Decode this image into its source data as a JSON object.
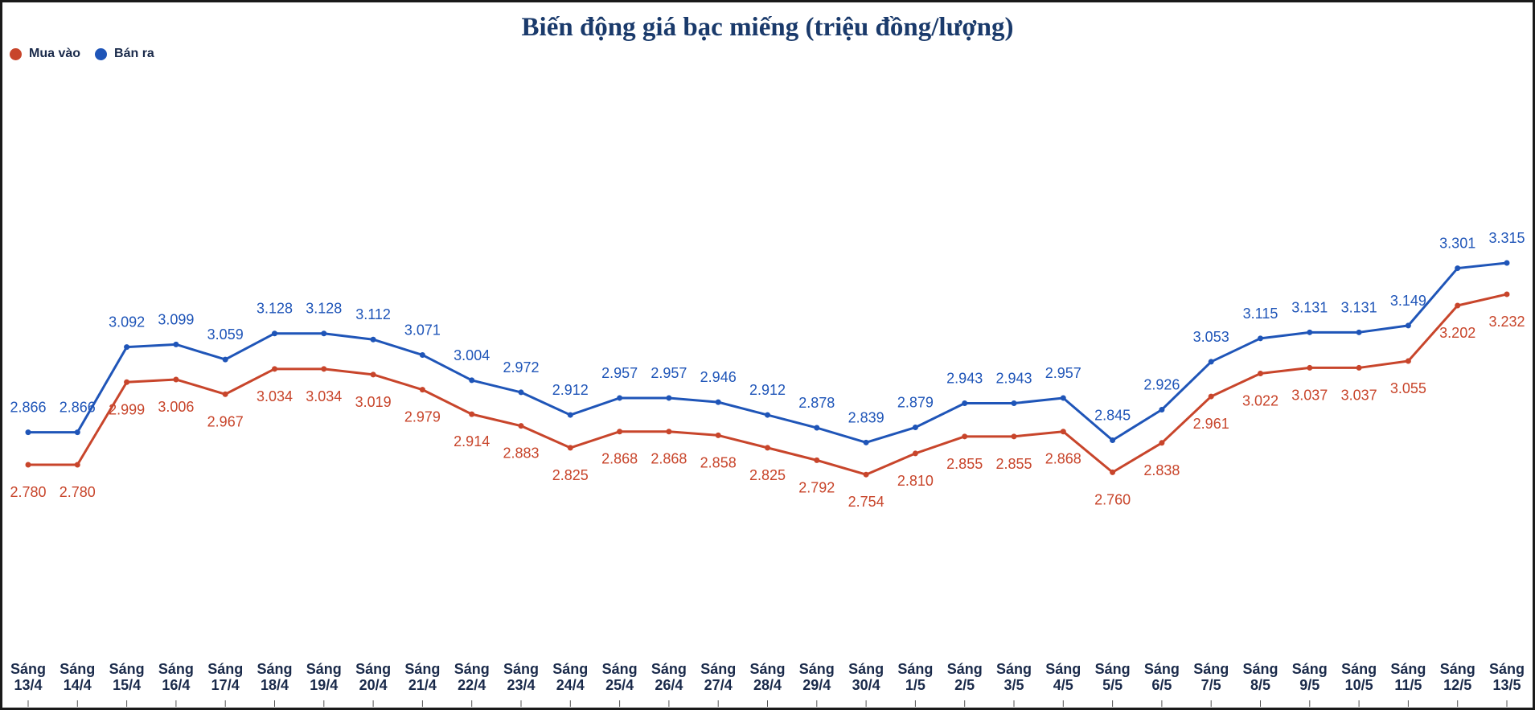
{
  "chart_data": {
    "type": "line",
    "title": "Biến động giá bạc miếng (triệu đồng/lượng)",
    "categories": [
      [
        "Sáng",
        "13/4"
      ],
      [
        "Sáng",
        "14/4"
      ],
      [
        "Sáng",
        "15/4"
      ],
      [
        "Sáng",
        "16/4"
      ],
      [
        "Sáng",
        "17/4"
      ],
      [
        "Sáng",
        "18/4"
      ],
      [
        "Sáng",
        "19/4"
      ],
      [
        "Sáng",
        "20/4"
      ],
      [
        "Sáng",
        "21/4"
      ],
      [
        "Sáng",
        "22/4"
      ],
      [
        "Sáng",
        "23/4"
      ],
      [
        "Sáng",
        "24/4"
      ],
      [
        "Sáng",
        "25/4"
      ],
      [
        "Sáng",
        "26/4"
      ],
      [
        "Sáng",
        "27/4"
      ],
      [
        "Sáng",
        "28/4"
      ],
      [
        "Sáng",
        "29/4"
      ],
      [
        "Sáng",
        "30/4"
      ],
      [
        "Sáng",
        "1/5"
      ],
      [
        "Sáng",
        "2/5"
      ],
      [
        "Sáng",
        "3/5"
      ],
      [
        "Sáng",
        "4/5"
      ],
      [
        "Sáng",
        "5/5"
      ],
      [
        "Sáng",
        "6/5"
      ],
      [
        "Sáng",
        "7/5"
      ],
      [
        "Sáng",
        "8/5"
      ],
      [
        "Sáng",
        "9/5"
      ],
      [
        "Sáng",
        "10/5"
      ],
      [
        "Sáng",
        "11/5"
      ],
      [
        "Sáng",
        "12/5"
      ],
      [
        "Sáng",
        "13/5"
      ]
    ],
    "series": [
      {
        "name": "Mua vào",
        "color": "#c8452b",
        "values": [
          2.78,
          2.78,
          2.999,
          3.006,
          2.967,
          3.034,
          3.034,
          3.019,
          2.979,
          2.914,
          2.883,
          2.825,
          2.868,
          2.868,
          2.858,
          2.825,
          2.792,
          2.754,
          2.81,
          2.855,
          2.855,
          2.868,
          2.76,
          2.838,
          2.961,
          3.022,
          3.037,
          3.037,
          3.055,
          3.202,
          3.232
        ],
        "labels": [
          "2.780",
          "2.780",
          "2.999",
          "3.006",
          "2.967",
          "3.034",
          "3.034",
          "3.019",
          "2.979",
          "2.914",
          "2.883",
          "2.825",
          "2.868",
          "2.868",
          "2.858",
          "2.825",
          "2.792",
          "2.754",
          "2.810",
          "2.855",
          "2.855",
          "2.868",
          "2.760",
          "2.838",
          "2.961",
          "3.022",
          "3.037",
          "3.037",
          "3.055",
          "3.202",
          "3.232"
        ]
      },
      {
        "name": "Bán ra",
        "color": "#1f55b8",
        "values": [
          2.866,
          2.866,
          3.092,
          3.099,
          3.059,
          3.128,
          3.128,
          3.112,
          3.071,
          3.004,
          2.972,
          2.912,
          2.957,
          2.957,
          2.946,
          2.912,
          2.878,
          2.839,
          2.879,
          2.943,
          2.943,
          2.957,
          2.845,
          2.926,
          3.053,
          3.115,
          3.131,
          3.131,
          3.149,
          3.301,
          3.315
        ],
        "labels": [
          "2.866",
          "2.866",
          "3.092",
          "3.099",
          "3.059",
          "3.128",
          "3.128",
          "3.112",
          "3.071",
          "3.004",
          "2.972",
          "2.912",
          "2.957",
          "2.957",
          "2.946",
          "2.912",
          "2.878",
          "2.839",
          "2.879",
          "2.943",
          "2.943",
          "2.957",
          "2.845",
          "2.926",
          "3.053",
          "3.115",
          "3.131",
          "3.131",
          "3.149",
          "3.301",
          "3.315"
        ]
      }
    ],
    "legend_position": "top-left",
    "grid": false
  },
  "colors": {
    "title": "#1a3a6b",
    "tick": "#1a2a4a"
  }
}
